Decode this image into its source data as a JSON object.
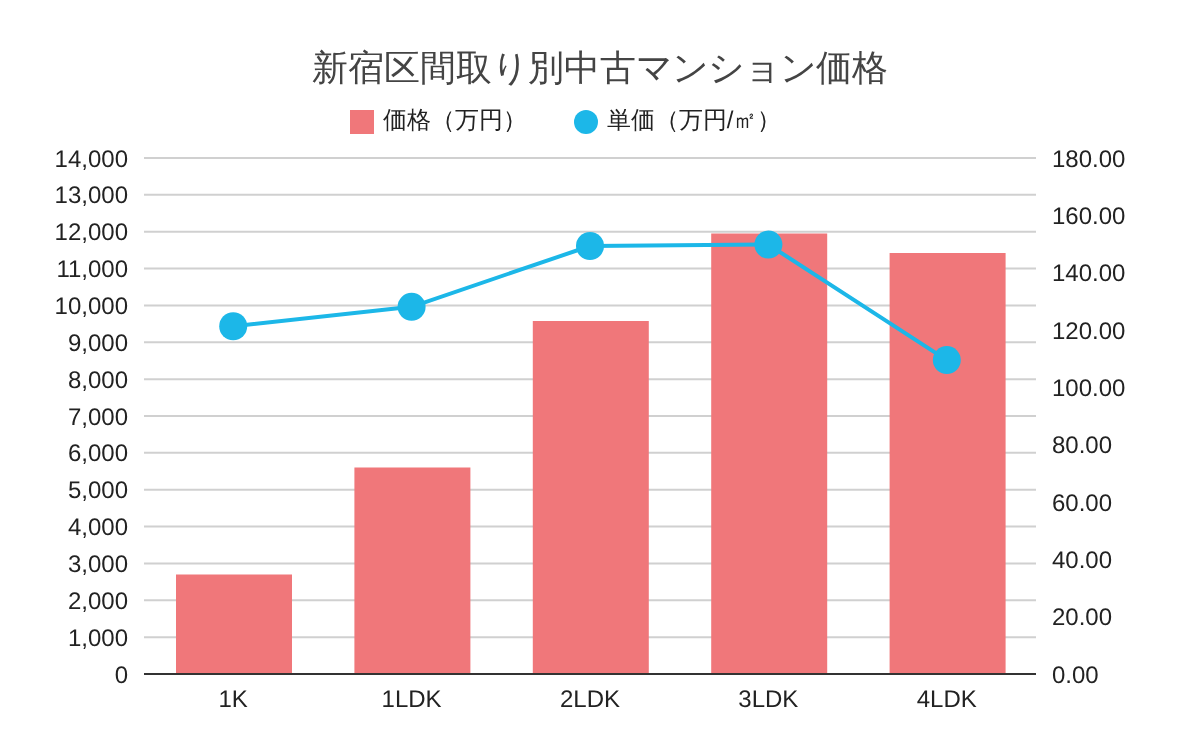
{
  "chart_data": {
    "type": "bar",
    "title": "新宿区間取り別中古マンション価格",
    "categories": [
      "1K",
      "1LDK",
      "2LDK",
      "3LDK",
      "4LDK"
    ],
    "series": [
      {
        "name": "価格（万円）",
        "color": "#f0777a",
        "values": [
          2700,
          5600,
          9580,
          11950,
          11420
        ]
      },
      {
        "name": "単価（万円/㎡）",
        "type": "line",
        "axis": "y2",
        "color": "#1cb7e8",
        "values": [
          121.3,
          128.1,
          149.3,
          149.8,
          109.5
        ]
      }
    ],
    "ylim": [
      0,
      14000
    ],
    "yticks": [
      {
        "value": 0,
        "label": "0"
      },
      {
        "value": 1000,
        "label": "1,000"
      },
      {
        "value": 2000,
        "label": "2,000"
      },
      {
        "value": 3000,
        "label": "3,000"
      },
      {
        "value": 4000,
        "label": "4,000"
      },
      {
        "value": 5000,
        "label": "5,000"
      },
      {
        "value": 6000,
        "label": "6,000"
      },
      {
        "value": 7000,
        "label": "7,000"
      },
      {
        "value": 8000,
        "label": "8,000"
      },
      {
        "value": 9000,
        "label": "9,000"
      },
      {
        "value": 10000,
        "label": "10,000"
      },
      {
        "value": 11000,
        "label": "11,000"
      },
      {
        "value": 12000,
        "label": "12,000"
      },
      {
        "value": 13000,
        "label": "13,000"
      },
      {
        "value": 14000,
        "label": "14,000"
      }
    ],
    "y2lim": [
      0,
      180
    ],
    "y2ticks": [
      {
        "value": 0,
        "label": "0.00"
      },
      {
        "value": 20,
        "label": "20.00"
      },
      {
        "value": 40,
        "label": "40.00"
      },
      {
        "value": 60,
        "label": "60.00"
      },
      {
        "value": 80,
        "label": "80.00"
      },
      {
        "value": 100,
        "label": "100.00"
      },
      {
        "value": 120,
        "label": "120.00"
      },
      {
        "value": 140,
        "label": "140.00"
      },
      {
        "value": 160,
        "label": "160.00"
      },
      {
        "value": 180,
        "label": "180.00"
      }
    ],
    "grid": "y",
    "legend": "top",
    "marker": "circle"
  }
}
